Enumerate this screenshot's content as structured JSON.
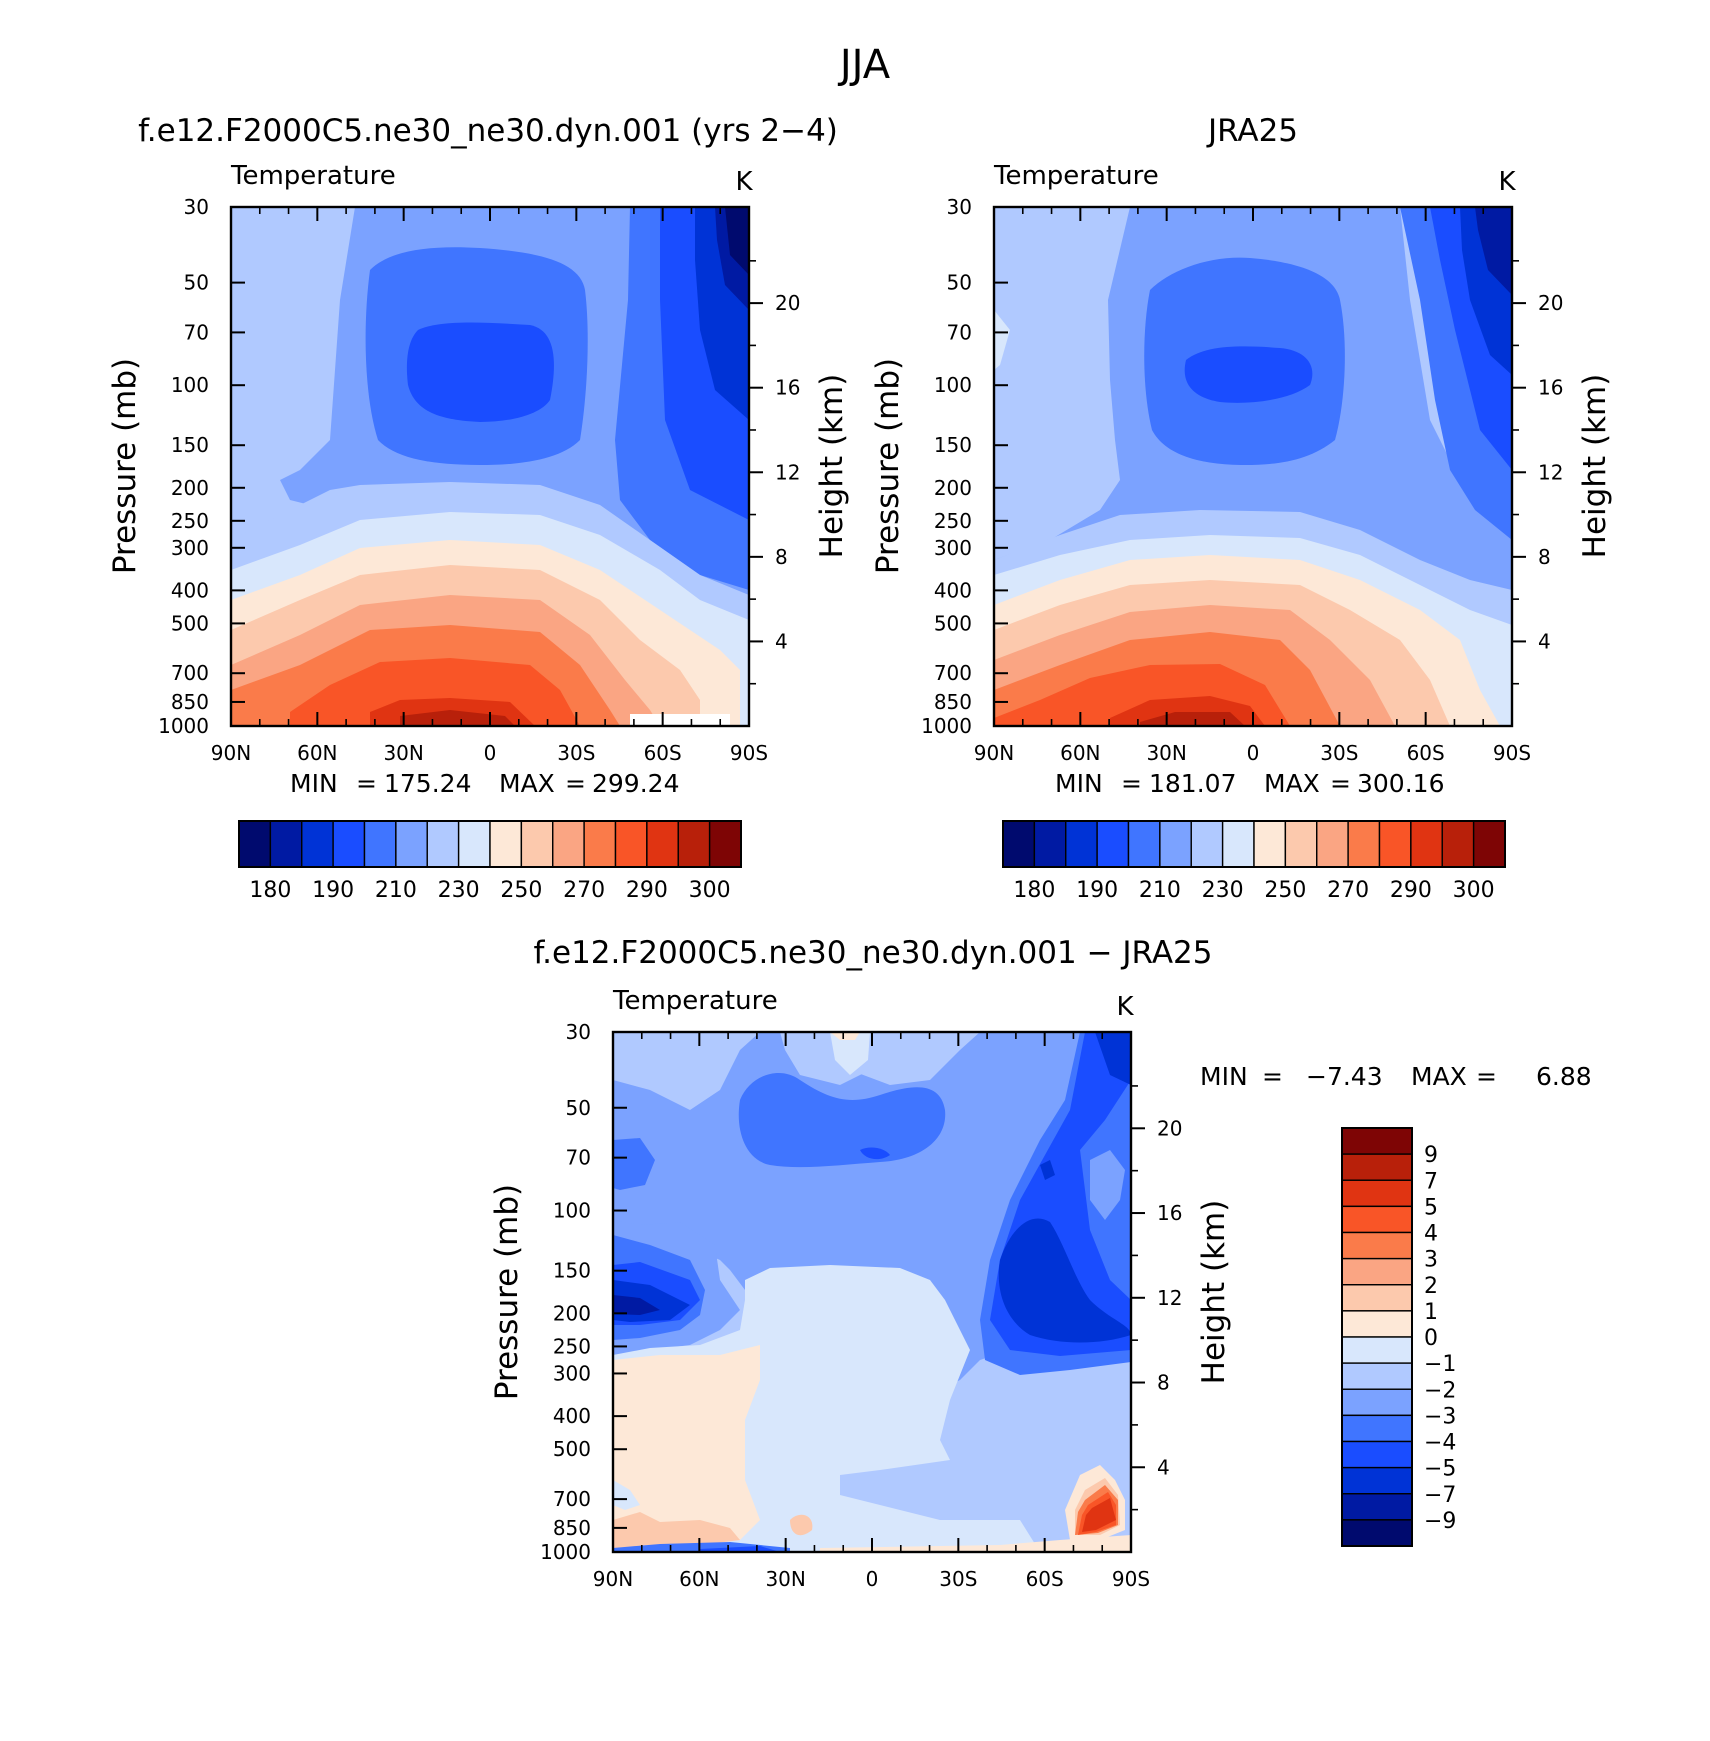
{
  "page_title": "JJA",
  "colors": {
    "temperature_levels": [
      "#000a6e",
      "#001aa3",
      "#0033d6",
      "#1a4dff",
      "#4075ff",
      "#7ba2ff",
      "#b0c9ff",
      "#d8e7fc",
      "#fde8d7",
      "#fcc9ad",
      "#faa583",
      "#fa7b4a",
      "#f95527",
      "#e03412",
      "#b8200a",
      "#7e0505"
    ],
    "difference_levels": [
      "#000a6e",
      "#001aa3",
      "#0033d6",
      "#1a4dff",
      "#4075ff",
      "#7ba2ff",
      "#b0c9ff",
      "#d8e7fc",
      "#fde8d7",
      "#fcc9ad",
      "#faa583",
      "#fa7b4a",
      "#f95527",
      "#e03412",
      "#b8200a",
      "#7e0505"
    ]
  },
  "chart_data": [
    {
      "type": "heatmap",
      "panel_title": "f.e12.F2000C5.ne30_ne30.dyn.001 (yrs 2−4)",
      "left_label": "Temperature",
      "units": "K",
      "x_tick_labels": [
        "90N",
        "60N",
        "30N",
        "0",
        "30S",
        "60S",
        "90S"
      ],
      "x_ticks": [
        90,
        60,
        30,
        0,
        -30,
        -60,
        -90
      ],
      "xlim": [
        90,
        -90
      ],
      "y_tick_labels": [
        "30",
        "50",
        "70",
        "100",
        "150",
        "200",
        "250",
        "300",
        "400",
        "500",
        "700",
        "850",
        "1000"
      ],
      "y_ticks": [
        30,
        50,
        70,
        100,
        150,
        200,
        250,
        300,
        400,
        500,
        700,
        850,
        1000
      ],
      "ylim": [
        1000,
        30
      ],
      "y_scale": "log",
      "ylabel": "Pressure (mb)",
      "y2_tick_labels": [
        "4",
        "8",
        "12",
        "16",
        "20"
      ],
      "y2_ticks": [
        4,
        8,
        12,
        16,
        20
      ],
      "y2label": "Height (km)",
      "min_label": "MIN",
      "min_value": "175.24",
      "max_label": "MAX",
      "max_value": "299.24",
      "colorbar_labels": [
        "180",
        "190",
        "210",
        "230",
        "250",
        "270",
        "290",
        "300"
      ],
      "colorbar_levels": [
        175,
        180,
        185,
        190,
        200,
        210,
        220,
        230,
        240,
        250,
        260,
        270,
        280,
        290,
        295,
        300
      ]
    },
    {
      "type": "heatmap",
      "panel_title": "JRA25",
      "left_label": "Temperature",
      "units": "K",
      "x_tick_labels": [
        "90N",
        "60N",
        "30N",
        "0",
        "30S",
        "60S",
        "90S"
      ],
      "x_ticks": [
        90,
        60,
        30,
        0,
        -30,
        -60,
        -90
      ],
      "xlim": [
        90,
        -90
      ],
      "y_tick_labels": [
        "30",
        "50",
        "70",
        "100",
        "150",
        "200",
        "250",
        "300",
        "400",
        "500",
        "700",
        "850",
        "1000"
      ],
      "y_ticks": [
        30,
        50,
        70,
        100,
        150,
        200,
        250,
        300,
        400,
        500,
        700,
        850,
        1000
      ],
      "ylim": [
        1000,
        30
      ],
      "y_scale": "log",
      "ylabel": "Pressure (mb)",
      "y2_tick_labels": [
        "4",
        "8",
        "12",
        "16",
        "20"
      ],
      "y2_ticks": [
        4,
        8,
        12,
        16,
        20
      ],
      "y2label": "Height (km)",
      "min_label": "MIN",
      "min_value": "181.07",
      "max_label": "MAX",
      "max_value": "300.16",
      "colorbar_labels": [
        "180",
        "190",
        "210",
        "230",
        "250",
        "270",
        "290",
        "300"
      ],
      "colorbar_levels": [
        175,
        180,
        185,
        190,
        200,
        210,
        220,
        230,
        240,
        250,
        260,
        270,
        280,
        290,
        295,
        300
      ]
    },
    {
      "type": "heatmap",
      "panel_title": "f.e12.F2000C5.ne30_ne30.dyn.001 − JRA25",
      "left_label": "Temperature",
      "units": "K",
      "x_tick_labels": [
        "90N",
        "60N",
        "30N",
        "0",
        "30S",
        "60S",
        "90S"
      ],
      "x_ticks": [
        90,
        60,
        30,
        0,
        -30,
        -60,
        -90
      ],
      "xlim": [
        90,
        -90
      ],
      "y_tick_labels": [
        "30",
        "50",
        "70",
        "100",
        "150",
        "200",
        "250",
        "300",
        "400",
        "500",
        "700",
        "850",
        "1000"
      ],
      "y_ticks": [
        30,
        50,
        70,
        100,
        150,
        200,
        250,
        300,
        400,
        500,
        700,
        850,
        1000
      ],
      "ylim": [
        1000,
        30
      ],
      "y_scale": "log",
      "ylabel": "Pressure (mb)",
      "y2_tick_labels": [
        "4",
        "8",
        "12",
        "16",
        "20"
      ],
      "y2_ticks": [
        4,
        8,
        12,
        16,
        20
      ],
      "y2label": "Height (km)",
      "min_label": "MIN",
      "min_value": "−7.43",
      "max_label": "MAX",
      "max_value": "6.88",
      "colorbar_labels": [
        "9",
        "7",
        "5",
        "4",
        "3",
        "2",
        "1",
        "0",
        "−1",
        "−2",
        "−3",
        "−4",
        "−5",
        "−7",
        "−9"
      ],
      "colorbar_levels": [
        -9,
        -7,
        -5,
        -4,
        -3,
        -2,
        -1,
        0,
        1,
        2,
        3,
        4,
        5,
        7,
        9
      ]
    }
  ]
}
